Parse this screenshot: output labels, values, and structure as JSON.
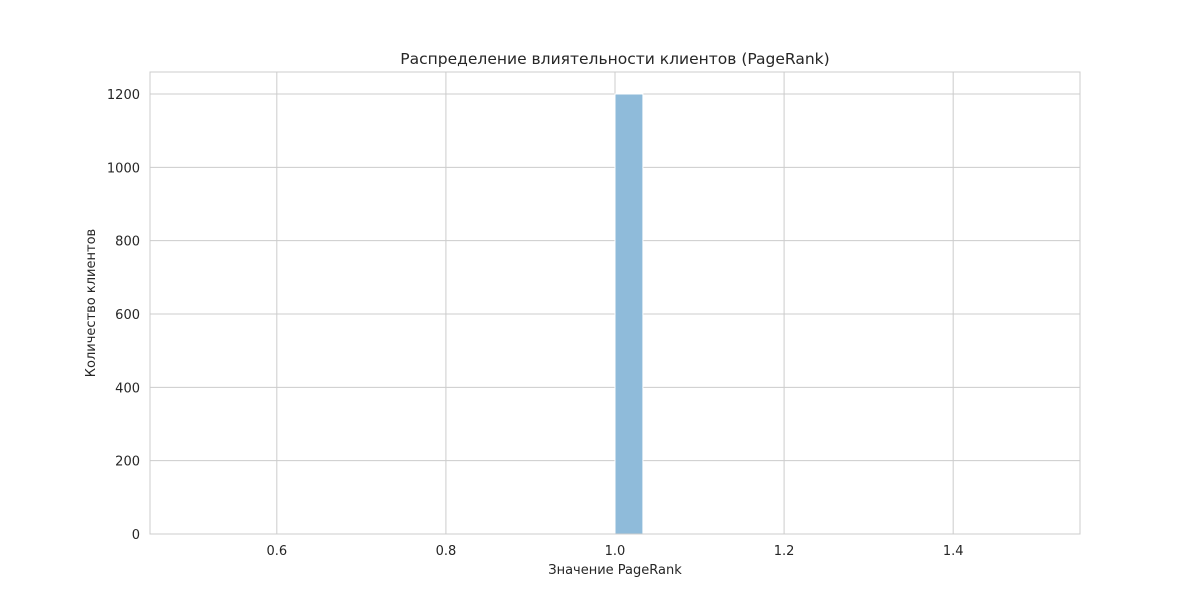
{
  "chart_data": {
    "type": "bar",
    "title": "Распределение влиятельности клиентов (PageRank)",
    "xlabel": "Значение PageRank",
    "ylabel": "Количество клиентов",
    "xlim": [
      0.45,
      1.55
    ],
    "ylim": [
      0,
      1260
    ],
    "xticks": [
      "0.6",
      "0.8",
      "1.0",
      "1.2",
      "1.4"
    ],
    "xtick_values": [
      0.6,
      0.8,
      1.0,
      1.2,
      1.4
    ],
    "yticks": [
      "0",
      "200",
      "400",
      "600",
      "800",
      "1000",
      "1200"
    ],
    "ytick_values": [
      0,
      200,
      400,
      600,
      800,
      1000,
      1200
    ],
    "bins": [
      {
        "x0": 1.0,
        "x1": 1.033,
        "count": 1200
      }
    ],
    "grid": true,
    "bar_color": "#8fbbda",
    "bar_edge_color": "#ffffff",
    "grid_color": "#cccccc",
    "spine_color": "#cccccc"
  }
}
